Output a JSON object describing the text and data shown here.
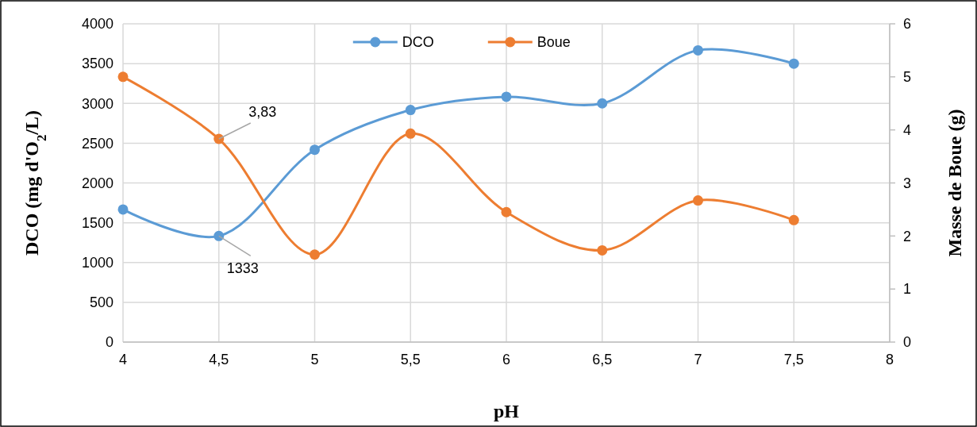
{
  "chart_data": {
    "type": "line",
    "xlabel": "pH",
    "ylabel": "DCO (mg d'O$_{2}$/L)",
    "y2label": "Masse de Boue (g)",
    "x": [
      4,
      4.5,
      5,
      5.5,
      6,
      6.5,
      7,
      7.5
    ],
    "xlim": [
      4,
      8
    ],
    "xticks": [
      {
        "value": 4,
        "label": "4"
      },
      {
        "value": 4.5,
        "label": "4,5"
      },
      {
        "value": 5,
        "label": "5"
      },
      {
        "value": 5.5,
        "label": "5,5"
      },
      {
        "value": 6,
        "label": "6"
      },
      {
        "value": 6.5,
        "label": "6,5"
      },
      {
        "value": 7,
        "label": "7"
      },
      {
        "value": 7.5,
        "label": "7,5"
      },
      {
        "value": 8,
        "label": "8"
      }
    ],
    "ylim": [
      0,
      4000
    ],
    "yticks": [
      0,
      500,
      1000,
      1500,
      2000,
      2500,
      3000,
      3500,
      4000
    ],
    "y2lim": [
      0,
      6
    ],
    "y2ticks": [
      0,
      1,
      2,
      3,
      4,
      5,
      6
    ],
    "series": [
      {
        "name": "DCO",
        "color": "#5b9bd5",
        "values": [
          1667,
          1333,
          2417,
          2917,
          3083,
          3000,
          3667,
          3500
        ],
        "value_labels": [
          null,
          "1333",
          null,
          null,
          null,
          null,
          null,
          null
        ]
      },
      {
        "name": "Boue",
        "color": "#ed7d31",
        "axis": "y2",
        "values": [
          5.0,
          3.83,
          1.65,
          3.93,
          2.45,
          1.73,
          2.67,
          2.3
        ],
        "value_labels": [
          null,
          "3,83",
          null,
          null,
          null,
          null,
          null,
          null
        ]
      }
    ],
    "grid": true,
    "legend": "top",
    "marker": "circle",
    "line_style": "solid"
  }
}
